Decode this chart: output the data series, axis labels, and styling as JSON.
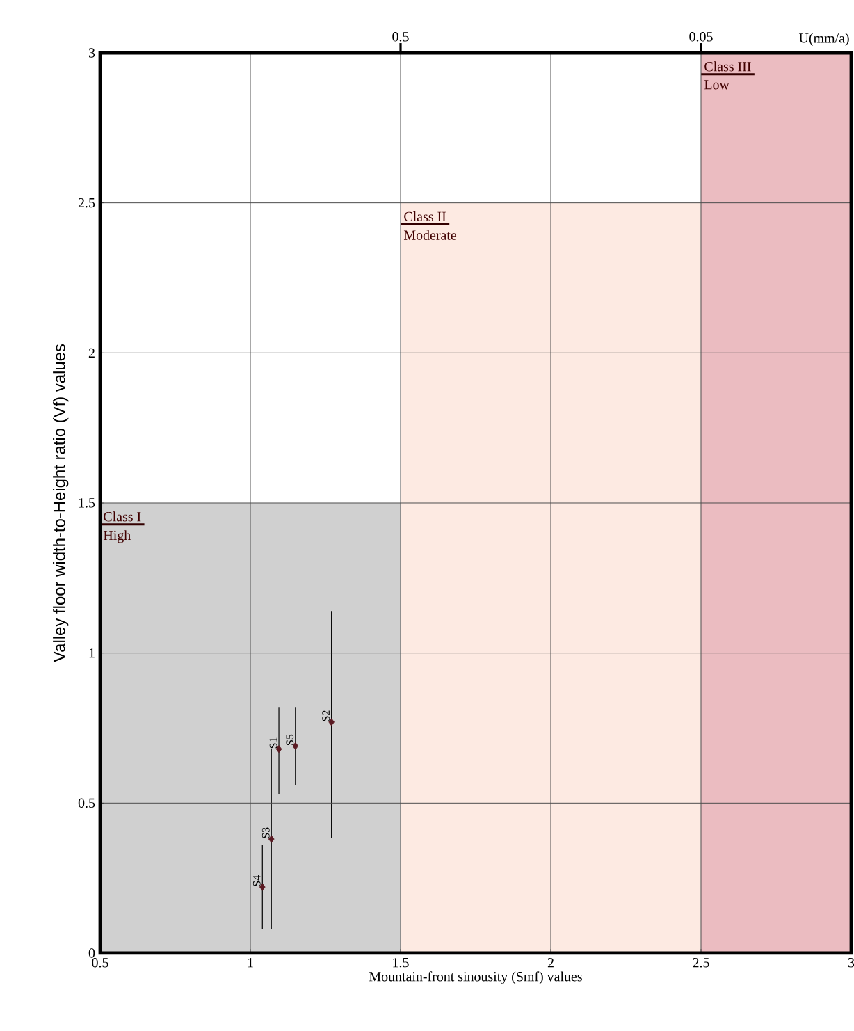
{
  "chart_data": {
    "type": "scatter",
    "xlabel": "Mountain-front sinousity (Smf) values",
    "ylabel": "Valley floor width-to-Height ratio (Vf) values",
    "xlim": [
      0.5,
      3
    ],
    "ylim": [
      0,
      3
    ],
    "xticks": [
      0.5,
      1,
      1.5,
      2,
      2.5,
      3
    ],
    "yticks": [
      0,
      0.5,
      1,
      1.5,
      2,
      2.5,
      3
    ],
    "grid": true,
    "series": [
      {
        "type": "area",
        "color": "#d0d0d0",
        "x": [
          0.5,
          1.5
        ],
        "values": [
          1.5,
          1.5
        ]
      },
      {
        "type": "area",
        "color": "#fdeae2",
        "x": [
          1.5,
          2.5
        ],
        "values": [
          2.5,
          2.5
        ]
      },
      {
        "type": "area",
        "color": "#ebbcc1",
        "x": [
          2.5,
          3
        ],
        "values": [
          3,
          3
        ]
      },
      {
        "color": "#5a1a22",
        "marker": "diamond",
        "x": [
          1.095,
          1.27,
          1.07,
          1.04,
          1.15
        ],
        "values": [
          0.68,
          0.77,
          0.38,
          0.22,
          0.69
        ],
        "errors": [
          [
            0.53,
            0.82
          ],
          [
            0.385,
            1.14
          ],
          [
            0.08,
            0.68
          ],
          [
            0.08,
            0.36
          ],
          [
            0.56,
            0.82
          ]
        ]
      }
    ],
    "annotations": [
      {
        "text": "S1",
        "x": 1.095,
        "y": 0.68
      },
      {
        "text": "S2",
        "x": 1.27,
        "y": 0.77
      },
      {
        "text": "S3",
        "x": 1.07,
        "y": 0.38
      },
      {
        "text": "S4",
        "x": 1.04,
        "y": 0.22
      },
      {
        "text": "S5",
        "x": 1.15,
        "y": 0.69
      },
      "0.5",
      "0.05",
      "U(mm/a)",
      "Class I",
      "High",
      "Class II",
      "Moderate",
      "Class III",
      "Low"
    ]
  }
}
